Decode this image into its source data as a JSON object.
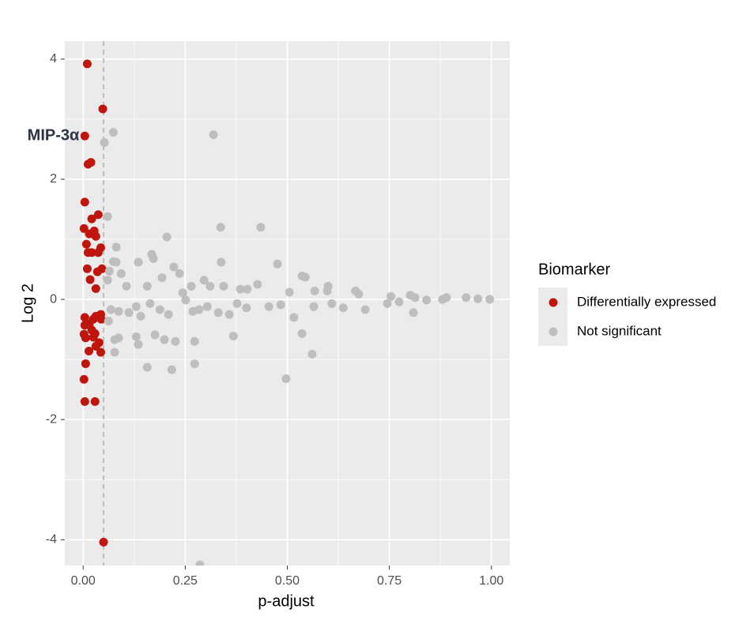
{
  "chart_data": {
    "type": "scatter",
    "xlabel": "p-adjust",
    "ylabel": "Log 2",
    "xlim": [
      -0.045,
      1.045
    ],
    "ylim": [
      -4.43,
      4.3
    ],
    "xticks": [
      {
        "value": 0,
        "label": "0.00"
      },
      {
        "value": 0.25,
        "label": "0.25"
      },
      {
        "value": 0.5,
        "label": "0.50"
      },
      {
        "value": 0.75,
        "label": "0.75"
      },
      {
        "value": 1,
        "label": "1.00"
      }
    ],
    "yticks": [
      -4,
      -2,
      0,
      2,
      4
    ],
    "grid": true,
    "minor_grid": true,
    "vline": 0.05,
    "legend_title": "Biomarker",
    "legend_position": "right",
    "annotations": [
      {
        "text": "MIP-3α",
        "x": 0.004,
        "y": 2.72
      }
    ],
    "series": [
      {
        "name": "Differentially expressed",
        "color": "#bf150d",
        "x": [
          0.01,
          0.048,
          0.004,
          0.012,
          0.019,
          0.004,
          0.002,
          0.021,
          0.037,
          0.027,
          0.015,
          0.031,
          0.008,
          0.012,
          0.021,
          0.037,
          0.043,
          0.01,
          0.035,
          0.046,
          0.017,
          0.031,
          0.004,
          0.004,
          0.015,
          0.025,
          0.031,
          0.043,
          0.044,
          0.002,
          0.021,
          0.029,
          0.006,
          0.025,
          0.039,
          0.031,
          0.014,
          0.043,
          0.006,
          0.002,
          0.004,
          0.029,
          0.05
        ],
        "values": [
          3.92,
          3.17,
          2.72,
          2.25,
          2.28,
          1.62,
          1.18,
          1.34,
          1.41,
          1.14,
          1.09,
          1.05,
          0.92,
          0.78,
          0.78,
          0.78,
          0.86,
          0.51,
          0.46,
          0.51,
          0.33,
          0.18,
          -0.3,
          -0.43,
          -0.41,
          -0.33,
          -0.28,
          -0.25,
          -0.33,
          -0.58,
          -0.51,
          -0.57,
          -0.64,
          -0.63,
          -0.72,
          -0.78,
          -0.86,
          -0.88,
          -1.07,
          -1.33,
          -1.7,
          -1.7,
          -4.04
        ]
      },
      {
        "name": "Not significant",
        "color": "#bebebe",
        "x": [
          0.074,
          0.052,
          0.319,
          0.06,
          0.337,
          0.435,
          0.205,
          0.081,
          0.168,
          0.172,
          0.074,
          0.081,
          0.135,
          0.338,
          0.476,
          0.222,
          0.064,
          0.093,
          0.236,
          0.536,
          0.544,
          0.06,
          0.193,
          0.296,
          0.106,
          0.157,
          0.265,
          0.311,
          0.344,
          0.427,
          0.6,
          0.385,
          0.402,
          0.505,
          0.567,
          0.598,
          0.667,
          0.675,
          0.244,
          0.754,
          0.801,
          0.841,
          0.88,
          0.938,
          0.996,
          0.774,
          0.813,
          0.89,
          0.967,
          0.068,
          0.087,
          0.112,
          0.13,
          0.141,
          0.164,
          0.188,
          0.209,
          0.251,
          0.269,
          0.284,
          0.304,
          0.331,
          0.358,
          0.377,
          0.4,
          0.455,
          0.484,
          0.516,
          0.536,
          0.565,
          0.609,
          0.637,
          0.691,
          0.745,
          0.809,
          0.062,
          0.077,
          0.087,
          0.13,
          0.135,
          0.176,
          0.199,
          0.226,
          0.273,
          0.368,
          0.077,
          0.561,
          0.157,
          0.217,
          0.273,
          0.497,
          0.286
        ],
        "values": [
          2.78,
          2.61,
          2.74,
          1.38,
          1.2,
          1.2,
          1.04,
          0.87,
          0.75,
          0.68,
          0.63,
          0.62,
          0.62,
          0.62,
          0.59,
          0.54,
          0.47,
          0.43,
          0.43,
          0.39,
          0.37,
          0.32,
          0.36,
          0.32,
          0.22,
          0.22,
          0.22,
          0.22,
          0.22,
          0.25,
          0.22,
          0.17,
          0.17,
          0.12,
          0.14,
          0.14,
          0.14,
          0.09,
          0.11,
          0.05,
          0.07,
          -0.01,
          0,
          0.03,
          0,
          -0.04,
          0.03,
          0.03,
          0.01,
          -0.17,
          -0.2,
          -0.22,
          -0.12,
          -0.28,
          -0.07,
          -0.17,
          -0.25,
          -0.01,
          -0.2,
          -0.17,
          -0.12,
          -0.22,
          -0.25,
          -0.07,
          -0.14,
          -0.12,
          -0.09,
          -0.3,
          -0.57,
          -0.12,
          -0.07,
          -0.14,
          -0.17,
          -0.07,
          -0.22,
          -0.36,
          -0.67,
          -0.64,
          -0.62,
          -0.75,
          -0.59,
          -0.67,
          -0.7,
          -0.7,
          -0.61,
          -0.88,
          -0.91,
          -1.13,
          -1.17,
          -1.07,
          -1.32,
          -4.42
        ]
      }
    ]
  }
}
